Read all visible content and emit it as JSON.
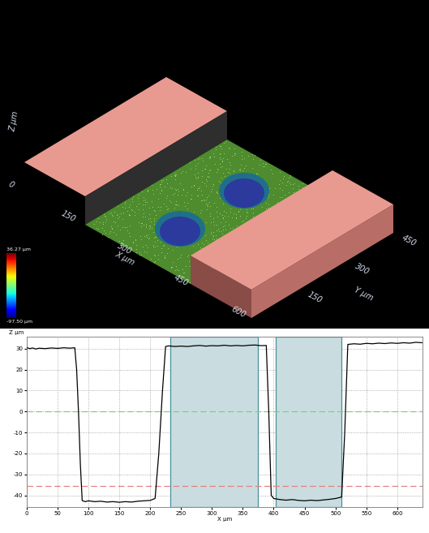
{
  "render_3d": {
    "x_label": "X µm",
    "x_ticks": [
      0,
      150,
      300,
      450,
      600
    ],
    "y_label": "Y µm",
    "y_ticks": [
      150,
      300,
      450
    ],
    "z_label": "Z µm",
    "colorbar": {
      "ticks": [
        {
          "value": 36.27,
          "label": "36.27 µm"
        },
        {
          "value": -97.5,
          "label": "-97.50 µm"
        }
      ]
    }
  },
  "chart_data": {
    "type": "line",
    "y_label": "Z µm",
    "x_label": "X µm",
    "color": "#000000",
    "x": [
      0,
      5,
      10,
      15,
      20,
      30,
      40,
      50,
      60,
      70,
      78,
      81,
      84,
      87,
      90,
      95,
      100,
      110,
      120,
      130,
      140,
      150,
      160,
      170,
      180,
      190,
      200,
      208,
      214,
      220,
      225,
      230,
      240,
      250,
      260,
      270,
      280,
      290,
      300,
      310,
      320,
      330,
      340,
      350,
      360,
      370,
      380,
      388,
      392,
      396,
      400,
      410,
      420,
      430,
      440,
      450,
      460,
      470,
      480,
      490,
      500,
      510,
      515,
      520,
      530,
      540,
      550,
      560,
      570,
      580,
      590,
      600,
      610,
      620,
      630,
      640
    ],
    "values": [
      30.5,
      30.0,
      30.3,
      29.8,
      30.2,
      30.0,
      30.3,
      30.1,
      30.4,
      30.2,
      30.4,
      20,
      0,
      -25,
      -42.5,
      -43.0,
      -42.6,
      -43.0,
      -42.8,
      -43.2,
      -43.0,
      -43.3,
      -43.0,
      -43.2,
      -42.8,
      -42.6,
      -42.4,
      -41.5,
      -20,
      10,
      31.0,
      31.3,
      31.0,
      31.2,
      31.0,
      31.3,
      31.5,
      31.2,
      31.4,
      31.3,
      31.6,
      31.3,
      31.5,
      31.3,
      31.6,
      31.7,
      31.4,
      31.5,
      0,
      -40,
      -41.5,
      -42.0,
      -42.3,
      -42.0,
      -42.4,
      -42.6,
      -42.3,
      -42.5,
      -42.2,
      -41.9,
      -41.5,
      -40.8,
      -10,
      32.0,
      32.3,
      32.1,
      32.5,
      32.3,
      32.6,
      32.4,
      32.7,
      32.5,
      32.8,
      32.6,
      33.0,
      32.8
    ],
    "xlim": [
      0,
      641
    ],
    "ylim": [
      -45.5,
      35.6
    ],
    "xticks": [
      0,
      50,
      100,
      150,
      200,
      250,
      300,
      350,
      400,
      450,
      500,
      550,
      600
    ],
    "yticks": [
      -40,
      -30,
      -20,
      -10,
      0,
      10,
      20,
      30
    ],
    "grid": true,
    "regions": [
      [
        232,
        375
      ],
      [
        403,
        509
      ]
    ],
    "ref_lines": [
      {
        "value": 0,
        "color": "#7fd07f"
      },
      {
        "value": -35.5,
        "color": "#e88080"
      }
    ]
  }
}
